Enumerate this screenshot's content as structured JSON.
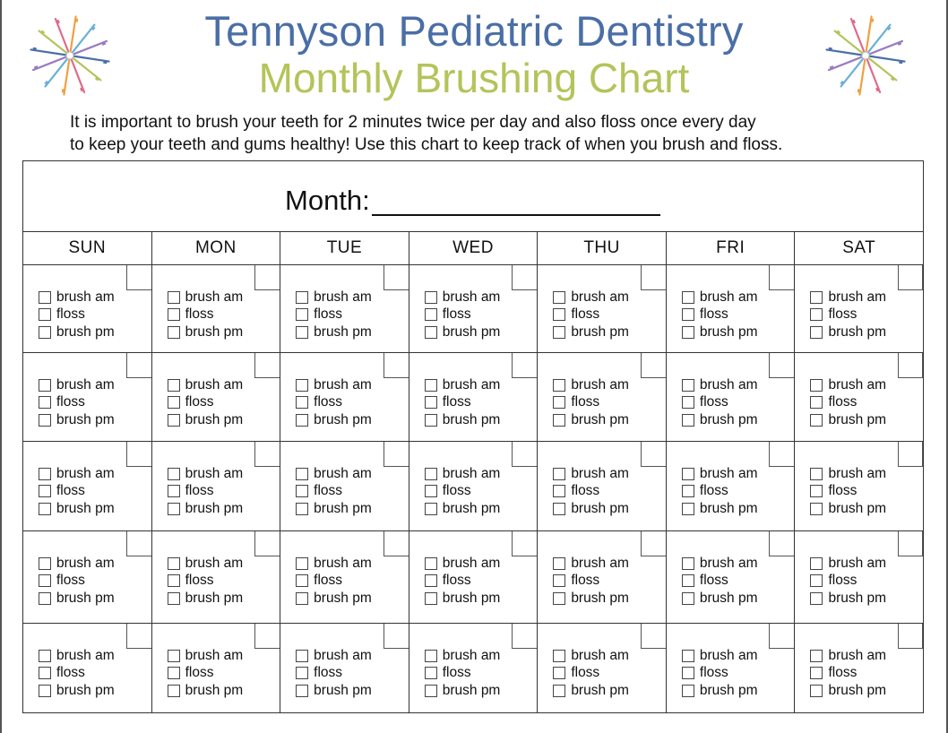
{
  "header": {
    "title": "Tennyson Pediatric Dentistry",
    "subtitle": "Monthly Brushing Chart",
    "intro_line1": "It is important to brush your teeth for 2 minutes twice per day and also floss once every day",
    "intro_line2": "to keep your teeth and gums healthy! Use this chart to keep track of when you brush and floss."
  },
  "colors": {
    "title": "#4a6ea6",
    "subtitle": "#b3c45a",
    "toothbrush_palette": [
      "#4a6ea6",
      "#b3c45a",
      "#e06a8a",
      "#f0a040",
      "#6ab0d8",
      "#9a7cc0"
    ]
  },
  "chart": {
    "month_label": "Month:",
    "days": [
      "SUN",
      "MON",
      "TUE",
      "WED",
      "THU",
      "FRI",
      "SAT"
    ],
    "task_labels": [
      "brush am",
      "floss",
      "brush pm"
    ],
    "weeks": 5
  }
}
